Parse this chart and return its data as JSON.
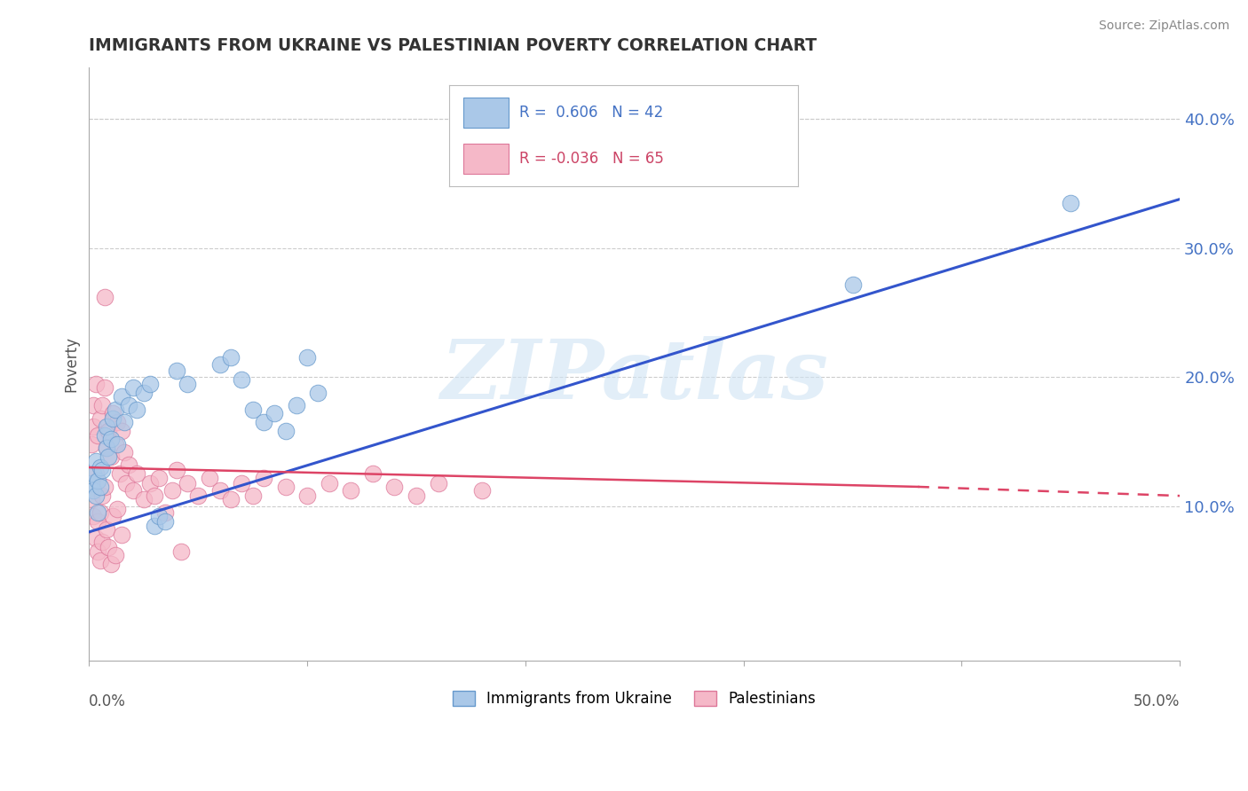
{
  "title": "IMMIGRANTS FROM UKRAINE VS PALESTINIAN POVERTY CORRELATION CHART",
  "source": "Source: ZipAtlas.com",
  "ylabel": "Poverty",
  "xlim": [
    0,
    0.5
  ],
  "ylim": [
    -0.02,
    0.44
  ],
  "yticks_right": [
    0.1,
    0.2,
    0.3,
    0.4
  ],
  "ytick_labels_right": [
    "10.0%",
    "20.0%",
    "30.0%",
    "40.0%"
  ],
  "xticks": [
    0.0,
    0.1,
    0.2,
    0.3,
    0.4,
    0.5
  ],
  "xtick_labels": [
    "0.0%",
    "",
    "",
    "",
    "",
    "50.0%"
  ],
  "watermark_text": "ZIPatlas",
  "ukraine_color": "#aac8e8",
  "ukraine_edge": "#6699cc",
  "palest_color": "#f5b8c8",
  "palest_edge": "#dd7799",
  "ukraine_trendline": [
    [
      0.0,
      0.08
    ],
    [
      0.5,
      0.338
    ]
  ],
  "palest_trendline_solid": [
    [
      0.0,
      0.13
    ],
    [
      0.38,
      0.115
    ]
  ],
  "palest_trendline_dashed": [
    [
      0.38,
      0.115
    ],
    [
      0.5,
      0.108
    ]
  ],
  "ukraine_scatter": [
    [
      0.001,
      0.118
    ],
    [
      0.002,
      0.112
    ],
    [
      0.002,
      0.125
    ],
    [
      0.003,
      0.108
    ],
    [
      0.003,
      0.135
    ],
    [
      0.004,
      0.095
    ],
    [
      0.004,
      0.12
    ],
    [
      0.005,
      0.115
    ],
    [
      0.005,
      0.13
    ],
    [
      0.006,
      0.128
    ],
    [
      0.007,
      0.155
    ],
    [
      0.008,
      0.145
    ],
    [
      0.008,
      0.162
    ],
    [
      0.009,
      0.138
    ],
    [
      0.01,
      0.152
    ],
    [
      0.011,
      0.168
    ],
    [
      0.012,
      0.175
    ],
    [
      0.013,
      0.148
    ],
    [
      0.015,
      0.185
    ],
    [
      0.016,
      0.165
    ],
    [
      0.018,
      0.178
    ],
    [
      0.02,
      0.192
    ],
    [
      0.022,
      0.175
    ],
    [
      0.025,
      0.188
    ],
    [
      0.028,
      0.195
    ],
    [
      0.03,
      0.085
    ],
    [
      0.032,
      0.092
    ],
    [
      0.035,
      0.088
    ],
    [
      0.04,
      0.205
    ],
    [
      0.045,
      0.195
    ],
    [
      0.06,
      0.21
    ],
    [
      0.065,
      0.215
    ],
    [
      0.07,
      0.198
    ],
    [
      0.075,
      0.175
    ],
    [
      0.08,
      0.165
    ],
    [
      0.085,
      0.172
    ],
    [
      0.09,
      0.158
    ],
    [
      0.095,
      0.178
    ],
    [
      0.1,
      0.215
    ],
    [
      0.105,
      0.188
    ],
    [
      0.35,
      0.272
    ],
    [
      0.45,
      0.335
    ]
  ],
  "palest_scatter": [
    [
      0.001,
      0.148
    ],
    [
      0.001,
      0.105
    ],
    [
      0.002,
      0.162
    ],
    [
      0.002,
      0.092
    ],
    [
      0.002,
      0.178
    ],
    [
      0.003,
      0.125
    ],
    [
      0.003,
      0.075
    ],
    [
      0.003,
      0.195
    ],
    [
      0.004,
      0.155
    ],
    [
      0.004,
      0.088
    ],
    [
      0.004,
      0.065
    ],
    [
      0.005,
      0.168
    ],
    [
      0.005,
      0.095
    ],
    [
      0.005,
      0.058
    ],
    [
      0.006,
      0.178
    ],
    [
      0.006,
      0.108
    ],
    [
      0.006,
      0.072
    ],
    [
      0.007,
      0.192
    ],
    [
      0.007,
      0.115
    ],
    [
      0.007,
      0.262
    ],
    [
      0.008,
      0.145
    ],
    [
      0.008,
      0.082
    ],
    [
      0.009,
      0.158
    ],
    [
      0.009,
      0.068
    ],
    [
      0.01,
      0.138
    ],
    [
      0.01,
      0.055
    ],
    [
      0.011,
      0.172
    ],
    [
      0.011,
      0.092
    ],
    [
      0.012,
      0.148
    ],
    [
      0.012,
      0.062
    ],
    [
      0.013,
      0.165
    ],
    [
      0.013,
      0.098
    ],
    [
      0.014,
      0.125
    ],
    [
      0.015,
      0.158
    ],
    [
      0.015,
      0.078
    ],
    [
      0.016,
      0.142
    ],
    [
      0.017,
      0.118
    ],
    [
      0.018,
      0.132
    ],
    [
      0.02,
      0.112
    ],
    [
      0.022,
      0.125
    ],
    [
      0.025,
      0.105
    ],
    [
      0.028,
      0.118
    ],
    [
      0.03,
      0.108
    ],
    [
      0.032,
      0.122
    ],
    [
      0.035,
      0.095
    ],
    [
      0.038,
      0.112
    ],
    [
      0.04,
      0.128
    ],
    [
      0.042,
      0.065
    ],
    [
      0.045,
      0.118
    ],
    [
      0.05,
      0.108
    ],
    [
      0.055,
      0.122
    ],
    [
      0.06,
      0.112
    ],
    [
      0.065,
      0.105
    ],
    [
      0.07,
      0.118
    ],
    [
      0.075,
      0.108
    ],
    [
      0.08,
      0.122
    ],
    [
      0.09,
      0.115
    ],
    [
      0.1,
      0.108
    ],
    [
      0.11,
      0.118
    ],
    [
      0.12,
      0.112
    ],
    [
      0.13,
      0.125
    ],
    [
      0.14,
      0.115
    ],
    [
      0.15,
      0.108
    ],
    [
      0.16,
      0.118
    ],
    [
      0.18,
      0.112
    ]
  ],
  "background_color": "#ffffff",
  "grid_color": "#cccccc",
  "title_color": "#333333",
  "source_color": "#888888",
  "legend_box_color": "#dddddd",
  "blue_text_color": "#4472c4",
  "pink_text_color": "#cc4466",
  "trendline_blue": "#3355cc",
  "trendline_pink": "#dd4466"
}
